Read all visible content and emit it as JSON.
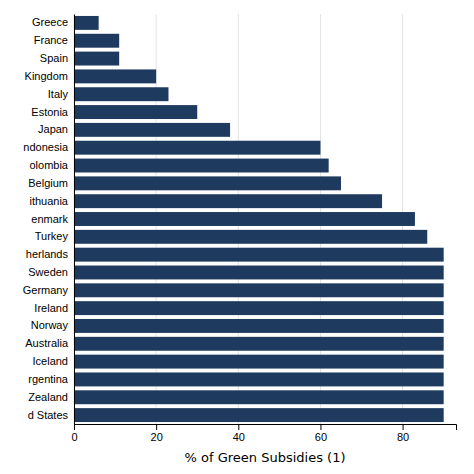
{
  "chart_data": {
    "type": "bar",
    "orientation": "horizontal",
    "categories": [
      "d States",
      "Zealand",
      "rgentina",
      "Iceland",
      "Australia",
      "Norway",
      "Ireland",
      "Germany",
      "Sweden",
      "herlands",
      "Turkey",
      "enmark",
      "ithuania",
      "Belgium",
      "olombia",
      "ndonesia",
      "Japan",
      "Estonia",
      "Italy",
      "Kingdom",
      "Spain",
      "France",
      "Greece"
    ],
    "values": [
      90,
      90,
      90,
      90,
      90,
      90,
      90,
      90,
      90,
      90,
      86,
      83,
      75,
      65,
      62,
      60,
      38,
      30,
      23,
      20,
      11,
      11,
      6
    ],
    "color": "#1e3a5f",
    "xlabel": "% of Green Subsidies (1)",
    "xlim": [
      0,
      93
    ],
    "xticks": [
      0,
      20,
      40,
      60,
      80
    ],
    "grid": true
  }
}
